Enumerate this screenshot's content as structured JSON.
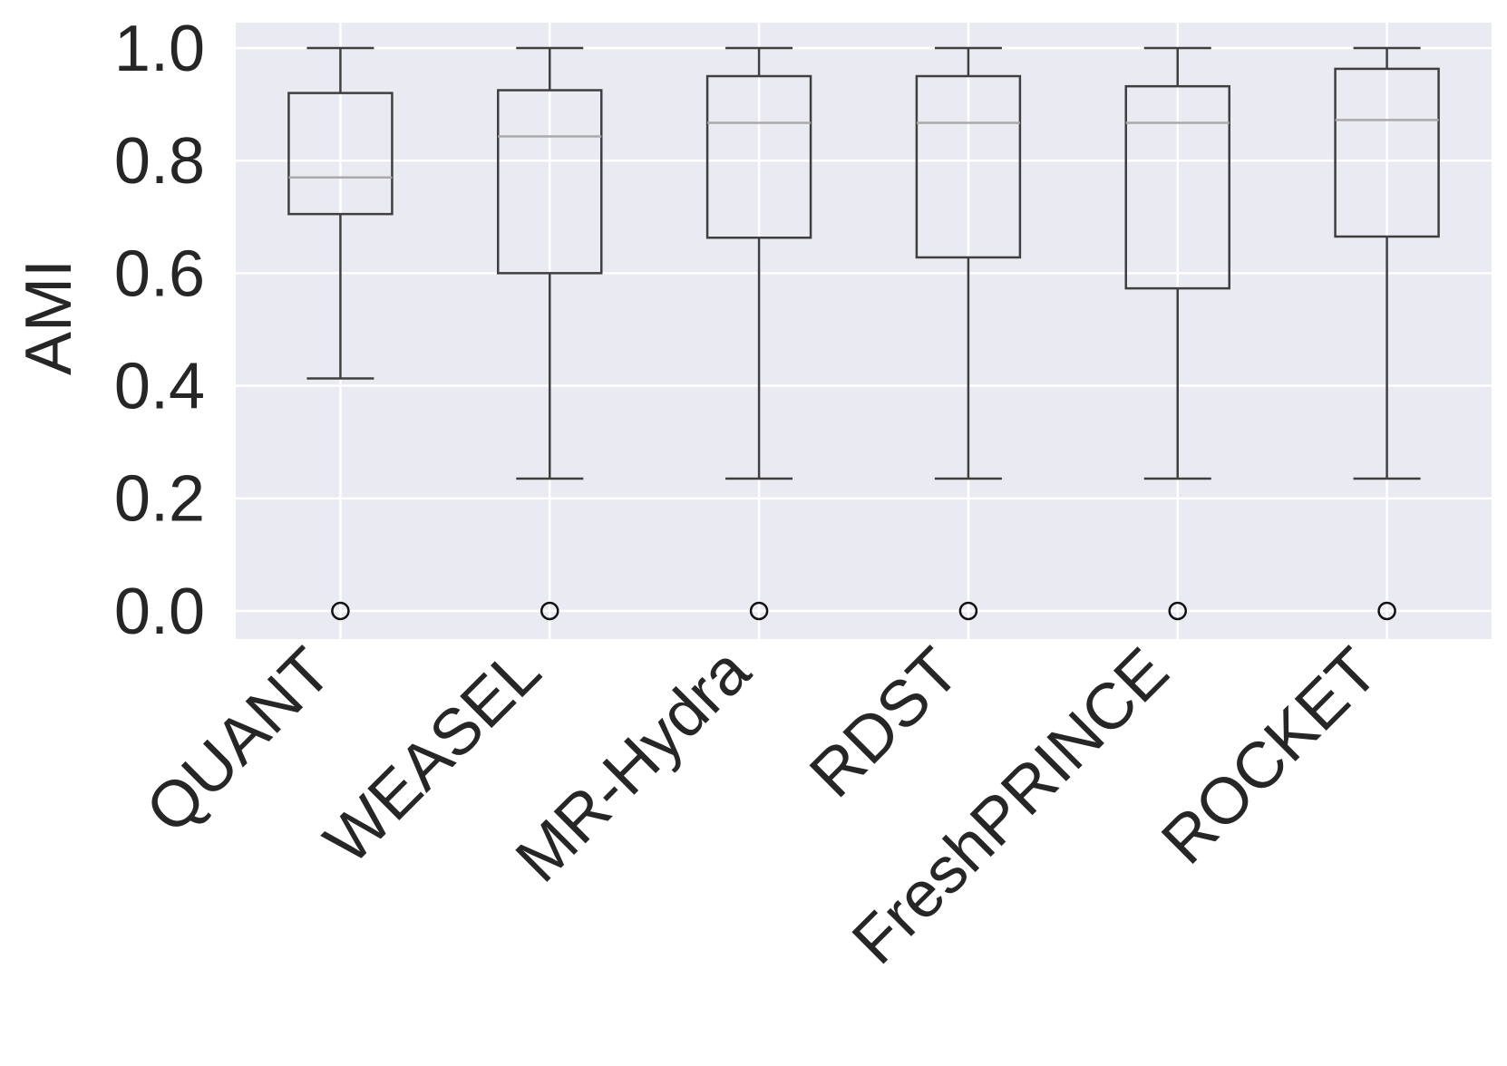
{
  "chart_data": {
    "type": "box",
    "title": "",
    "xlabel": "",
    "ylabel": "AMI",
    "ylim": [
      -0.05,
      1.045
    ],
    "yticks": [
      0.0,
      0.2,
      0.4,
      0.6,
      0.8,
      1.0
    ],
    "ytick_labels": [
      "0.0",
      "0.2",
      "0.4",
      "0.6",
      "0.8",
      "1.0"
    ],
    "grid": true,
    "categories": [
      "QUANT",
      "WEASEL",
      "MR-Hydra",
      "RDST",
      "FreshPRINCE",
      "ROCKET"
    ],
    "boxes": [
      {
        "name": "QUANT",
        "whisker_low": 0.413,
        "q1": 0.705,
        "median": 0.77,
        "q3": 0.92,
        "whisker_high": 1.0,
        "outliers": [
          0.0
        ]
      },
      {
        "name": "WEASEL",
        "whisker_low": 0.235,
        "q1": 0.6,
        "median": 0.843,
        "q3": 0.925,
        "whisker_high": 1.0,
        "outliers": [
          0.0
        ]
      },
      {
        "name": "MR-Hydra",
        "whisker_low": 0.235,
        "q1": 0.663,
        "median": 0.867,
        "q3": 0.95,
        "whisker_high": 1.0,
        "outliers": [
          0.0
        ]
      },
      {
        "name": "RDST",
        "whisker_low": 0.235,
        "q1": 0.628,
        "median": 0.867,
        "q3": 0.95,
        "whisker_high": 1.0,
        "outliers": [
          0.0
        ]
      },
      {
        "name": "FreshPRINCE",
        "whisker_low": 0.235,
        "q1": 0.573,
        "median": 0.867,
        "q3": 0.932,
        "whisker_high": 1.0,
        "outliers": [
          0.0
        ]
      },
      {
        "name": "ROCKET",
        "whisker_low": 0.235,
        "q1": 0.665,
        "median": 0.872,
        "q3": 0.963,
        "whisker_high": 1.0,
        "outliers": [
          0.0
        ]
      }
    ],
    "colors": {
      "plot_background": "#eaeaf2",
      "grid": "#ffffff",
      "box_line": "#3f3f3f",
      "median_line": "#aaaaaa",
      "text": "#262626"
    }
  }
}
